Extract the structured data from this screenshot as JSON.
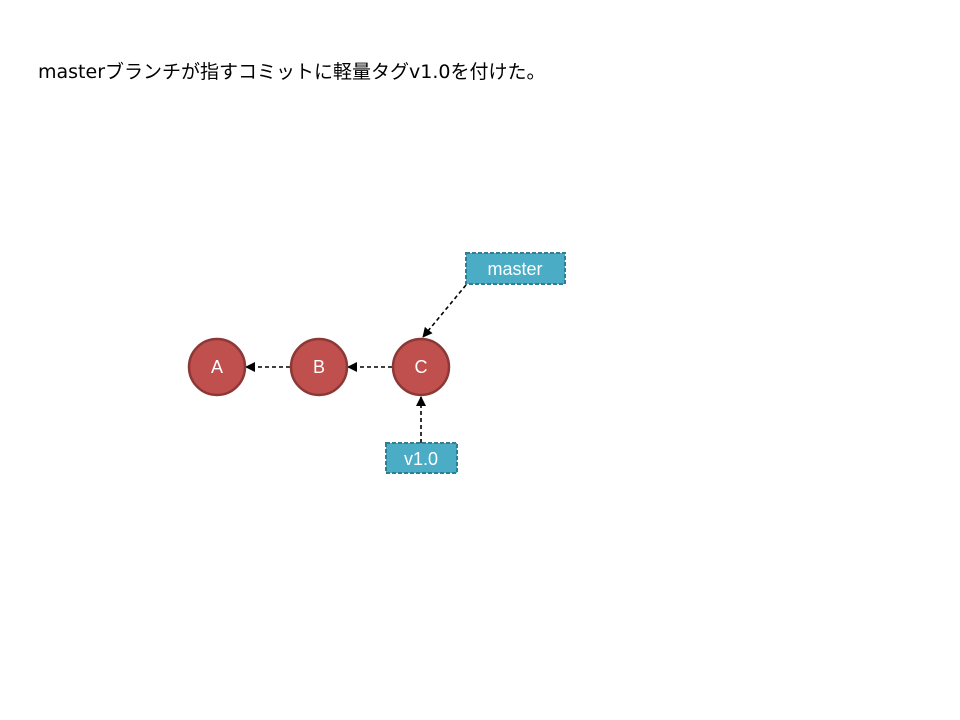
{
  "caption": "masterブランチが指すコミットに軽量タグv1.0を付けた。",
  "commits": [
    {
      "id": "A"
    },
    {
      "id": "B"
    },
    {
      "id": "C"
    }
  ],
  "parent_links": [
    {
      "from": "C",
      "to": "B"
    },
    {
      "from": "B",
      "to": "A"
    }
  ],
  "refs": [
    {
      "name": "master",
      "points_to": "C"
    },
    {
      "name": "v1.0",
      "points_to": "C"
    }
  ],
  "colors": {
    "commit_fill": "#c0504d",
    "commit_stroke": "#8c3836",
    "ref_fill": "#4bacc6",
    "ref_stroke": "#2f7f93",
    "arrow": "#000000",
    "label_text": "#ffffff"
  }
}
